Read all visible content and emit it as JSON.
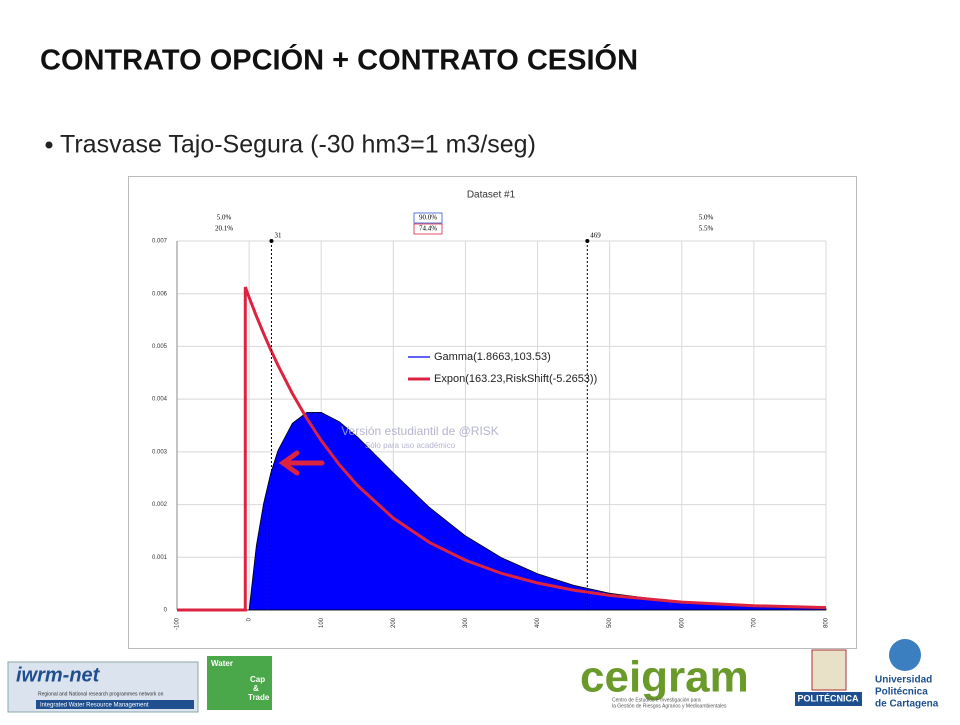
{
  "title": "CONTRATO OPCIÓN + CONTRATO CESIÓN",
  "bullet": "Trasvase Tajo-Segura (-30 hm3=1 m3/seg)",
  "logos": {
    "iwrm": "iwrm-net",
    "iwrm_sub1": "Regional and National research programmes network on",
    "iwrm_sub2": "Integrated Water Resource Management",
    "water": [
      "Water",
      "Cap",
      "&",
      "Trade"
    ],
    "ceigram": "ceigram",
    "ceigram_sub1": "Centro de Estudios e Investigación para",
    "ceigram_sub2": "la Gestión de Riesgos Agrarios y Medioambientales",
    "upm": "POLITÉCNICA",
    "upct": [
      "Universidad",
      "Politécnica",
      "de Cartagena"
    ]
  },
  "chart_data": {
    "type": "area",
    "title": "Dataset #1",
    "xlim": [
      -100,
      800
    ],
    "xticks": [
      -100,
      0,
      100,
      200,
      300,
      400,
      500,
      600,
      700,
      800
    ],
    "ylim": [
      0,
      0.007
    ],
    "yticks": [
      0,
      0.001,
      0.002,
      0.003,
      0.004,
      0.005,
      0.006,
      0.007
    ],
    "grid": true,
    "markers": [
      31,
      469
    ],
    "regions": [
      [
        "5.0%",
        "20.1%"
      ],
      [
        "90.0%",
        "74.4%"
      ],
      [
        "5.0%",
        "5.5%"
      ]
    ],
    "watermark": [
      "Versión estudiantil de @RISK",
      "Sólo para uso académico"
    ],
    "series": [
      {
        "name": "Gamma(1.8663,103.53)",
        "color": "#0000ff",
        "fill": true,
        "x": [
          -100,
          0,
          10,
          20,
          30,
          40,
          60,
          80,
          100,
          125,
          150,
          200,
          250,
          300,
          350,
          400,
          450,
          500,
          600,
          700,
          800
        ],
        "values": [
          0,
          0,
          0.001216,
          0.002013,
          0.002597,
          0.003025,
          0.003543,
          0.003749,
          0.003749,
          0.003573,
          0.003285,
          0.002601,
          0.001947,
          0.001406,
          0.000992,
          0.000687,
          0.000469,
          0.000317,
          0.000141,
          6.16e-05,
          2.63e-05
        ]
      },
      {
        "name": "Expon(163.23,RiskShift(-5.2653))",
        "color": "#dc2340",
        "fill": false,
        "x": [
          -100,
          -5.3,
          -5.3,
          0,
          10,
          20,
          30,
          40,
          60,
          80,
          100,
          125,
          150,
          200,
          250,
          300,
          350,
          400,
          450,
          500,
          600,
          700,
          800
        ],
        "values": [
          0,
          0,
          0.006126,
          0.005931,
          0.005579,
          0.005248,
          0.004936,
          0.004643,
          0.004107,
          0.003634,
          0.003214,
          0.002758,
          0.002367,
          0.001742,
          0.001282,
          0.000944,
          0.000695,
          0.000512,
          0.000377,
          0.000277,
          0.00015,
          8.14e-05,
          4.41e-05
        ]
      }
    ]
  }
}
